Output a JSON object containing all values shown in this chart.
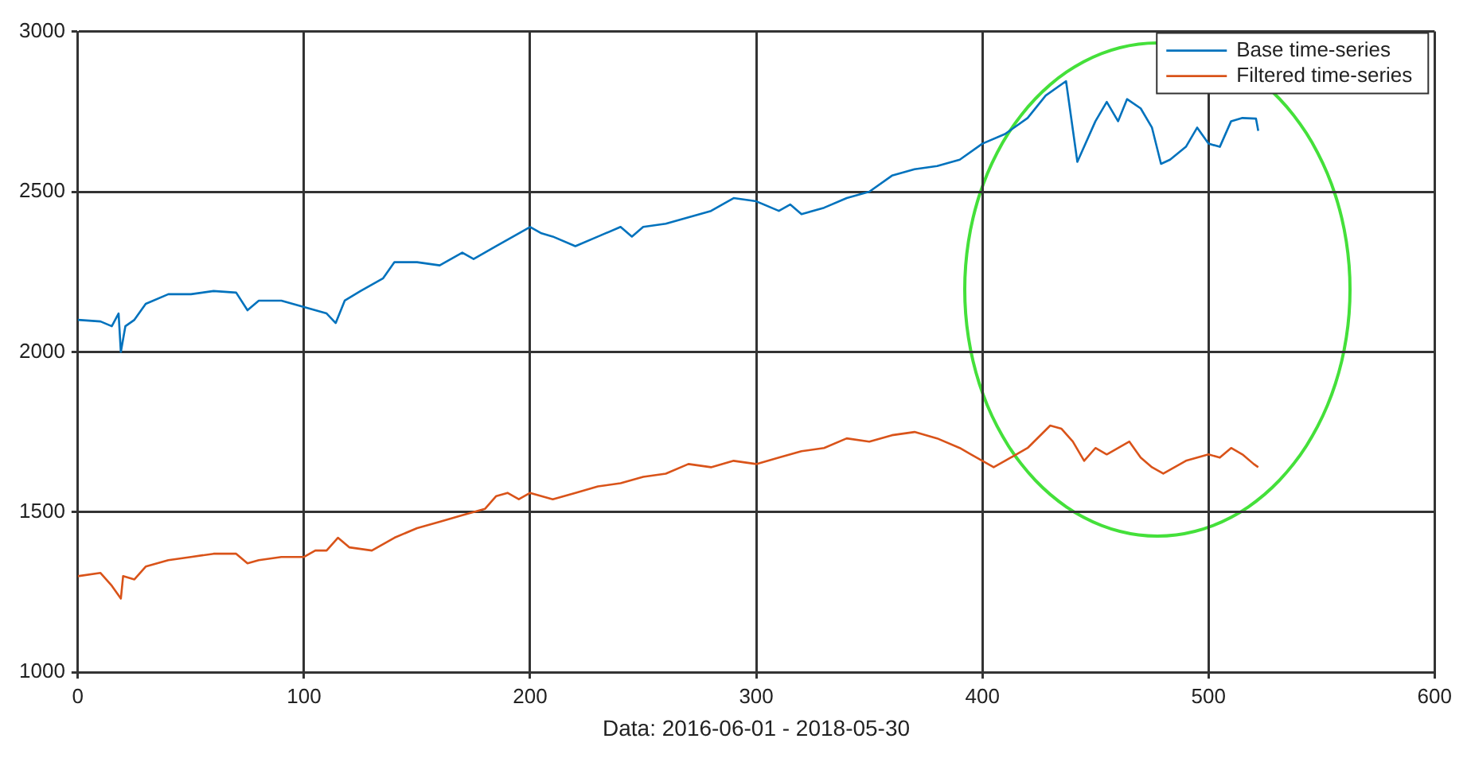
{
  "chart_data": {
    "type": "line",
    "xlabel": "Data: 2016-06-01 - 2018-05-30",
    "xlim": [
      0,
      600
    ],
    "xticks": [
      0,
      100,
      200,
      300,
      400,
      500,
      600
    ],
    "ylim": [
      1000,
      3000
    ],
    "yticks": [
      1000,
      1500,
      2000,
      2500,
      3000
    ],
    "grid": true,
    "legend": "top right",
    "marker": "none",
    "line_style": "solid",
    "series": [
      {
        "name": "Base time-series",
        "color": "#0072bd",
        "x": [
          0,
          10,
          15,
          18,
          19,
          21,
          25,
          30,
          40,
          50,
          60,
          70,
          75,
          80,
          90,
          100,
          105,
          110,
          114,
          118,
          125,
          135,
          140,
          150,
          160,
          170,
          175,
          185,
          195,
          200,
          205,
          210,
          220,
          230,
          240,
          245,
          250,
          260,
          270,
          280,
          290,
          300,
          310,
          315,
          320,
          330,
          340,
          350,
          360,
          370,
          380,
          390,
          400,
          410,
          420,
          428,
          437,
          442,
          450,
          455,
          460,
          464,
          470,
          475,
          479,
          483,
          490,
          495,
          500,
          505,
          510,
          515,
          521,
          522
        ],
        "values": [
          2100,
          2095,
          2080,
          2120,
          2000,
          2080,
          2100,
          2150,
          2180,
          2180,
          2190,
          2185,
          2130,
          2160,
          2160,
          2140,
          2130,
          2120,
          2090,
          2160,
          2190,
          2230,
          2280,
          2280,
          2270,
          2310,
          2290,
          2330,
          2370,
          2390,
          2370,
          2360,
          2330,
          2360,
          2390,
          2360,
          2390,
          2400,
          2420,
          2440,
          2480,
          2470,
          2440,
          2460,
          2430,
          2450,
          2480,
          2500,
          2550,
          2570,
          2580,
          2600,
          2650,
          2680,
          2730,
          2800,
          2845,
          2593,
          2720,
          2780,
          2720,
          2789,
          2760,
          2700,
          2587,
          2600,
          2640,
          2700,
          2650,
          2640,
          2720,
          2730,
          2728,
          2690
        ]
      },
      {
        "name": "Filtered time-series",
        "color": "#d95319",
        "x": [
          0,
          10,
          15,
          19,
          20,
          25,
          30,
          40,
          50,
          60,
          70,
          75,
          80,
          90,
          100,
          105,
          110,
          115,
          120,
          130,
          140,
          150,
          160,
          170,
          180,
          185,
          190,
          195,
          200,
          210,
          220,
          230,
          240,
          250,
          260,
          270,
          280,
          290,
          300,
          310,
          320,
          330,
          340,
          350,
          360,
          370,
          380,
          390,
          395,
          400,
          405,
          410,
          420,
          430,
          435,
          440,
          445,
          450,
          455,
          465,
          470,
          475,
          480,
          490,
          500,
          505,
          510,
          515,
          520,
          522
        ],
        "values": [
          1300,
          1310,
          1270,
          1230,
          1300,
          1290,
          1330,
          1350,
          1360,
          1370,
          1370,
          1340,
          1350,
          1360,
          1360,
          1380,
          1380,
          1420,
          1390,
          1380,
          1420,
          1450,
          1470,
          1490,
          1510,
          1550,
          1560,
          1540,
          1560,
          1540,
          1560,
          1580,
          1590,
          1610,
          1620,
          1650,
          1640,
          1660,
          1650,
          1670,
          1690,
          1700,
          1730,
          1720,
          1740,
          1750,
          1730,
          1700,
          1680,
          1660,
          1640,
          1660,
          1700,
          1770,
          1760,
          1720,
          1660,
          1700,
          1680,
          1720,
          1670,
          1640,
          1620,
          1660,
          1680,
          1670,
          1700,
          1680,
          1650,
          1640
        ]
      }
    ]
  }
}
